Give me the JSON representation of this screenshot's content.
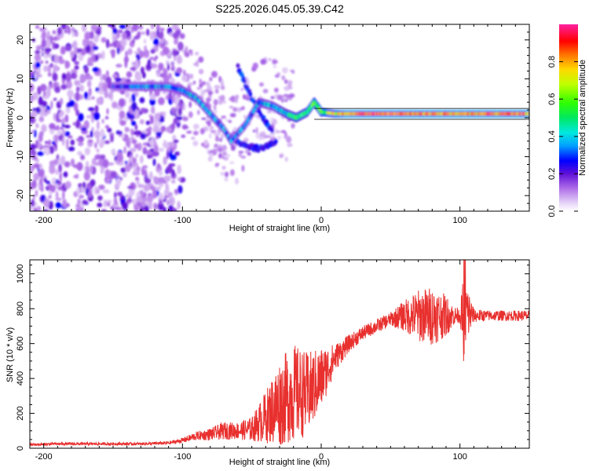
{
  "title": "S225.2026.045.05.39.C42",
  "chart_data": [
    {
      "type": "heatmap",
      "xlabel": "Height of straight line (km)",
      "ylabel": "Frequency (Hz)",
      "xlim": [
        -210,
        150
      ],
      "ylim": [
        -24,
        24
      ],
      "xticks": [
        -200,
        -100,
        0,
        100
      ],
      "xtick_labels": [
        "-200",
        "-100",
        "0",
        "100"
      ],
      "yticks": [
        -20,
        -10,
        0,
        10,
        20
      ],
      "ytick_labels": [
        "-20",
        "-10",
        "0",
        "10",
        "20"
      ],
      "colorbar": {
        "label": "Normalized spectral amplitude",
        "range": [
          0,
          1
        ],
        "ticks": [
          0.0,
          0.2,
          0.4,
          0.6,
          0.8
        ],
        "tick_labels": [
          "0.0",
          "0.2",
          "0.4",
          "0.6",
          "0.8"
        ]
      },
      "ridge": {
        "x": [
          -150,
          -130,
          -110,
          -100,
          -90,
          -80,
          -70,
          -65,
          -55,
          -45,
          -35,
          -25,
          -18,
          -10,
          -5,
          0,
          10,
          30,
          60,
          100,
          150
        ],
        "y": [
          8,
          8,
          8,
          7,
          5,
          1,
          -3,
          -6,
          -2,
          4,
          3,
          1,
          0,
          1.5,
          4,
          1.5,
          1,
          1,
          1,
          1,
          1
        ],
        "amplitude": [
          0.25,
          0.3,
          0.3,
          0.35,
          0.35,
          0.35,
          0.3,
          0.3,
          0.3,
          0.35,
          0.35,
          0.45,
          0.5,
          0.5,
          0.55,
          0.6,
          0.7,
          0.9,
          0.85,
          0.8,
          0.85
        ]
      },
      "secondary_branch": {
        "x": [
          -60,
          -55,
          -50,
          -45,
          -40,
          -35
        ],
        "y": [
          13,
          9,
          5,
          2,
          -1,
          -4
        ]
      },
      "lower_branch": {
        "x": [
          -65,
          -55,
          -45,
          -38,
          -32
        ],
        "y": [
          -5,
          -7,
          -8,
          -7,
          -6
        ]
      },
      "noise_region_x": [
        -210,
        -100
      ]
    },
    {
      "type": "line",
      "xlabel": "Height of straight line (km)",
      "ylabel": "SNR (10 * v/v)",
      "xlim": [
        -210,
        150
      ],
      "ylim": [
        0,
        1080
      ],
      "xticks": [
        -200,
        -100,
        0,
        100
      ],
      "xtick_labels": [
        "-200",
        "-100",
        "0",
        "100"
      ],
      "yticks": [
        0,
        200,
        400,
        600,
        800,
        1000
      ],
      "ytick_labels": [
        "0",
        "200",
        "400",
        "600",
        "800",
        "1000"
      ],
      "color": "#e8302e",
      "series": [
        {
          "name": "SNR",
          "x": [
            -210,
            -190,
            -170,
            -150,
            -130,
            -110,
            -100,
            -90,
            -80,
            -70,
            -60,
            -50,
            -40,
            -30,
            -20,
            -10,
            0,
            10,
            20,
            30,
            40,
            50,
            60,
            70,
            80,
            90,
            95,
            100,
            103,
            110,
            120,
            130,
            140,
            150
          ],
          "y": [
            20,
            25,
            25,
            25,
            25,
            30,
            45,
            70,
            80,
            100,
            100,
            110,
            180,
            260,
            320,
            310,
            400,
            520,
            600,
            660,
            700,
            740,
            760,
            760,
            760,
            760,
            760,
            760,
            780,
            760,
            760,
            760,
            760,
            760
          ],
          "noise_amplitude": [
            8,
            8,
            8,
            8,
            8,
            10,
            15,
            25,
            35,
            50,
            50,
            70,
            150,
            250,
            280,
            240,
            180,
            80,
            50,
            40,
            40,
            40,
            90,
            150,
            170,
            120,
            60,
            40,
            250,
            40,
            30,
            30,
            30,
            30
          ]
        }
      ]
    }
  ]
}
